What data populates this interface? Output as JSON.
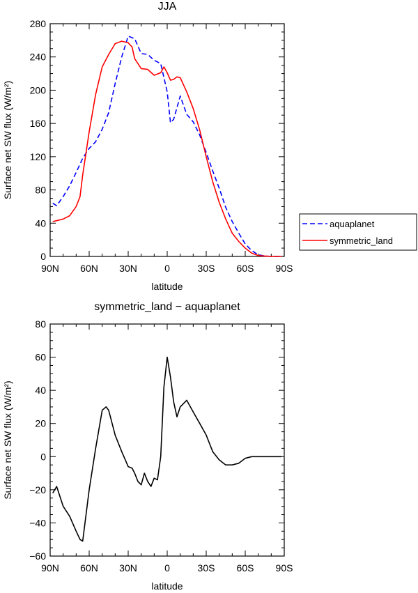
{
  "chart_data": [
    {
      "type": "line",
      "title": "JJA",
      "xlabel": "latitude",
      "ylabel": "Surface net SW flux (W/m²)",
      "xlim": [
        90,
        -90
      ],
      "ylim": [
        0,
        280
      ],
      "xticks": [
        {
          "value": 90,
          "label": "90N"
        },
        {
          "value": 60,
          "label": "60N"
        },
        {
          "value": 30,
          "label": "30N"
        },
        {
          "value": 0,
          "label": "0"
        },
        {
          "value": -30,
          "label": "30S"
        },
        {
          "value": -60,
          "label": "60S"
        },
        {
          "value": -90,
          "label": "90S"
        }
      ],
      "yticks": [
        0,
        40,
        80,
        120,
        160,
        200,
        240,
        280
      ],
      "legend_position": "right",
      "series": [
        {
          "name": "aquaplanet",
          "color": "#0000ff",
          "dash": "dashed",
          "x": [
            88,
            85,
            80,
            75,
            70,
            65,
            60,
            55,
            50,
            45,
            40,
            35,
            30,
            25,
            20,
            15,
            10,
            5,
            0,
            -2.5,
            -5,
            -10,
            -15,
            -20,
            -25,
            -30,
            -35,
            -40,
            -45,
            -50,
            -55,
            -60,
            -65,
            -70,
            -75,
            -80,
            -85,
            -88
          ],
          "y": [
            64,
            61,
            72,
            85,
            101,
            118,
            130,
            138,
            153,
            173,
            208,
            240,
            265,
            262,
            244,
            243,
            236,
            232,
            198,
            161,
            165,
            193,
            171,
            162,
            146,
            125,
            103,
            82,
            59,
            42,
            28,
            15,
            7,
            2,
            0.5,
            0,
            0,
            0
          ]
        },
        {
          "name": "symmetric_land",
          "color": "#ff0000",
          "dash": "solid",
          "x": [
            88,
            85,
            80,
            75,
            70,
            67,
            65,
            60,
            55,
            50,
            45,
            40,
            35,
            30,
            27,
            25,
            20,
            15,
            10,
            5,
            2.5,
            0,
            -2.5,
            -5,
            -7.5,
            -10,
            -15,
            -20,
            -25,
            -30,
            -35,
            -40,
            -45,
            -50,
            -55,
            -60,
            -65,
            -70,
            -75,
            -80,
            -85,
            -88
          ],
          "y": [
            42,
            43,
            45,
            49,
            60,
            72,
            98,
            150,
            195,
            228,
            243,
            256,
            259,
            257,
            252,
            238,
            226,
            225,
            218,
            221,
            228,
            221,
            212,
            213,
            216,
            215,
            198,
            178,
            152,
            120,
            90,
            65,
            45,
            28,
            18,
            10,
            4,
            1,
            0.5,
            0,
            0,
            0
          ]
        }
      ]
    },
    {
      "type": "line",
      "title": "symmetric_land − aquaplanet",
      "xlabel": "latitude",
      "ylabel": "Surface net SW flux (W/m²)",
      "xlim": [
        90,
        -90
      ],
      "ylim": [
        -60,
        80
      ],
      "xticks": [
        {
          "value": 90,
          "label": "90N"
        },
        {
          "value": 60,
          "label": "60N"
        },
        {
          "value": 30,
          "label": "30N"
        },
        {
          "value": 0,
          "label": "0"
        },
        {
          "value": -30,
          "label": "30S"
        },
        {
          "value": -60,
          "label": "60S"
        },
        {
          "value": -90,
          "label": "90S"
        }
      ],
      "yticks": [
        -60,
        -40,
        -20,
        0,
        20,
        40,
        60,
        80
      ],
      "series": [
        {
          "color": "#000000",
          "dash": "solid",
          "x": [
            88,
            85,
            80,
            75,
            70,
            67,
            65,
            60,
            55,
            50,
            47,
            45,
            40,
            35,
            30,
            27,
            25,
            22.5,
            20,
            17.5,
            15,
            12.5,
            10,
            7.5,
            5,
            2.5,
            0,
            -2.5,
            -5,
            -7.5,
            -10,
            -15,
            -20,
            -25,
            -30,
            -35,
            -40,
            -45,
            -50,
            -55,
            -60,
            -65,
            -70,
            -75,
            -80,
            -85,
            -88
          ],
          "y": [
            -22,
            -18,
            -30,
            -36,
            -45,
            -50,
            -51,
            -20,
            5,
            28,
            30,
            28,
            13,
            3,
            -6,
            -7,
            -10,
            -15,
            -17,
            -10,
            -15,
            -18,
            -13,
            -14,
            0,
            42,
            60,
            48,
            33,
            24,
            30,
            34,
            27,
            20,
            13,
            3,
            -2,
            -5,
            -5,
            -4,
            -1,
            0,
            0,
            0,
            0,
            0,
            0
          ]
        }
      ]
    }
  ]
}
